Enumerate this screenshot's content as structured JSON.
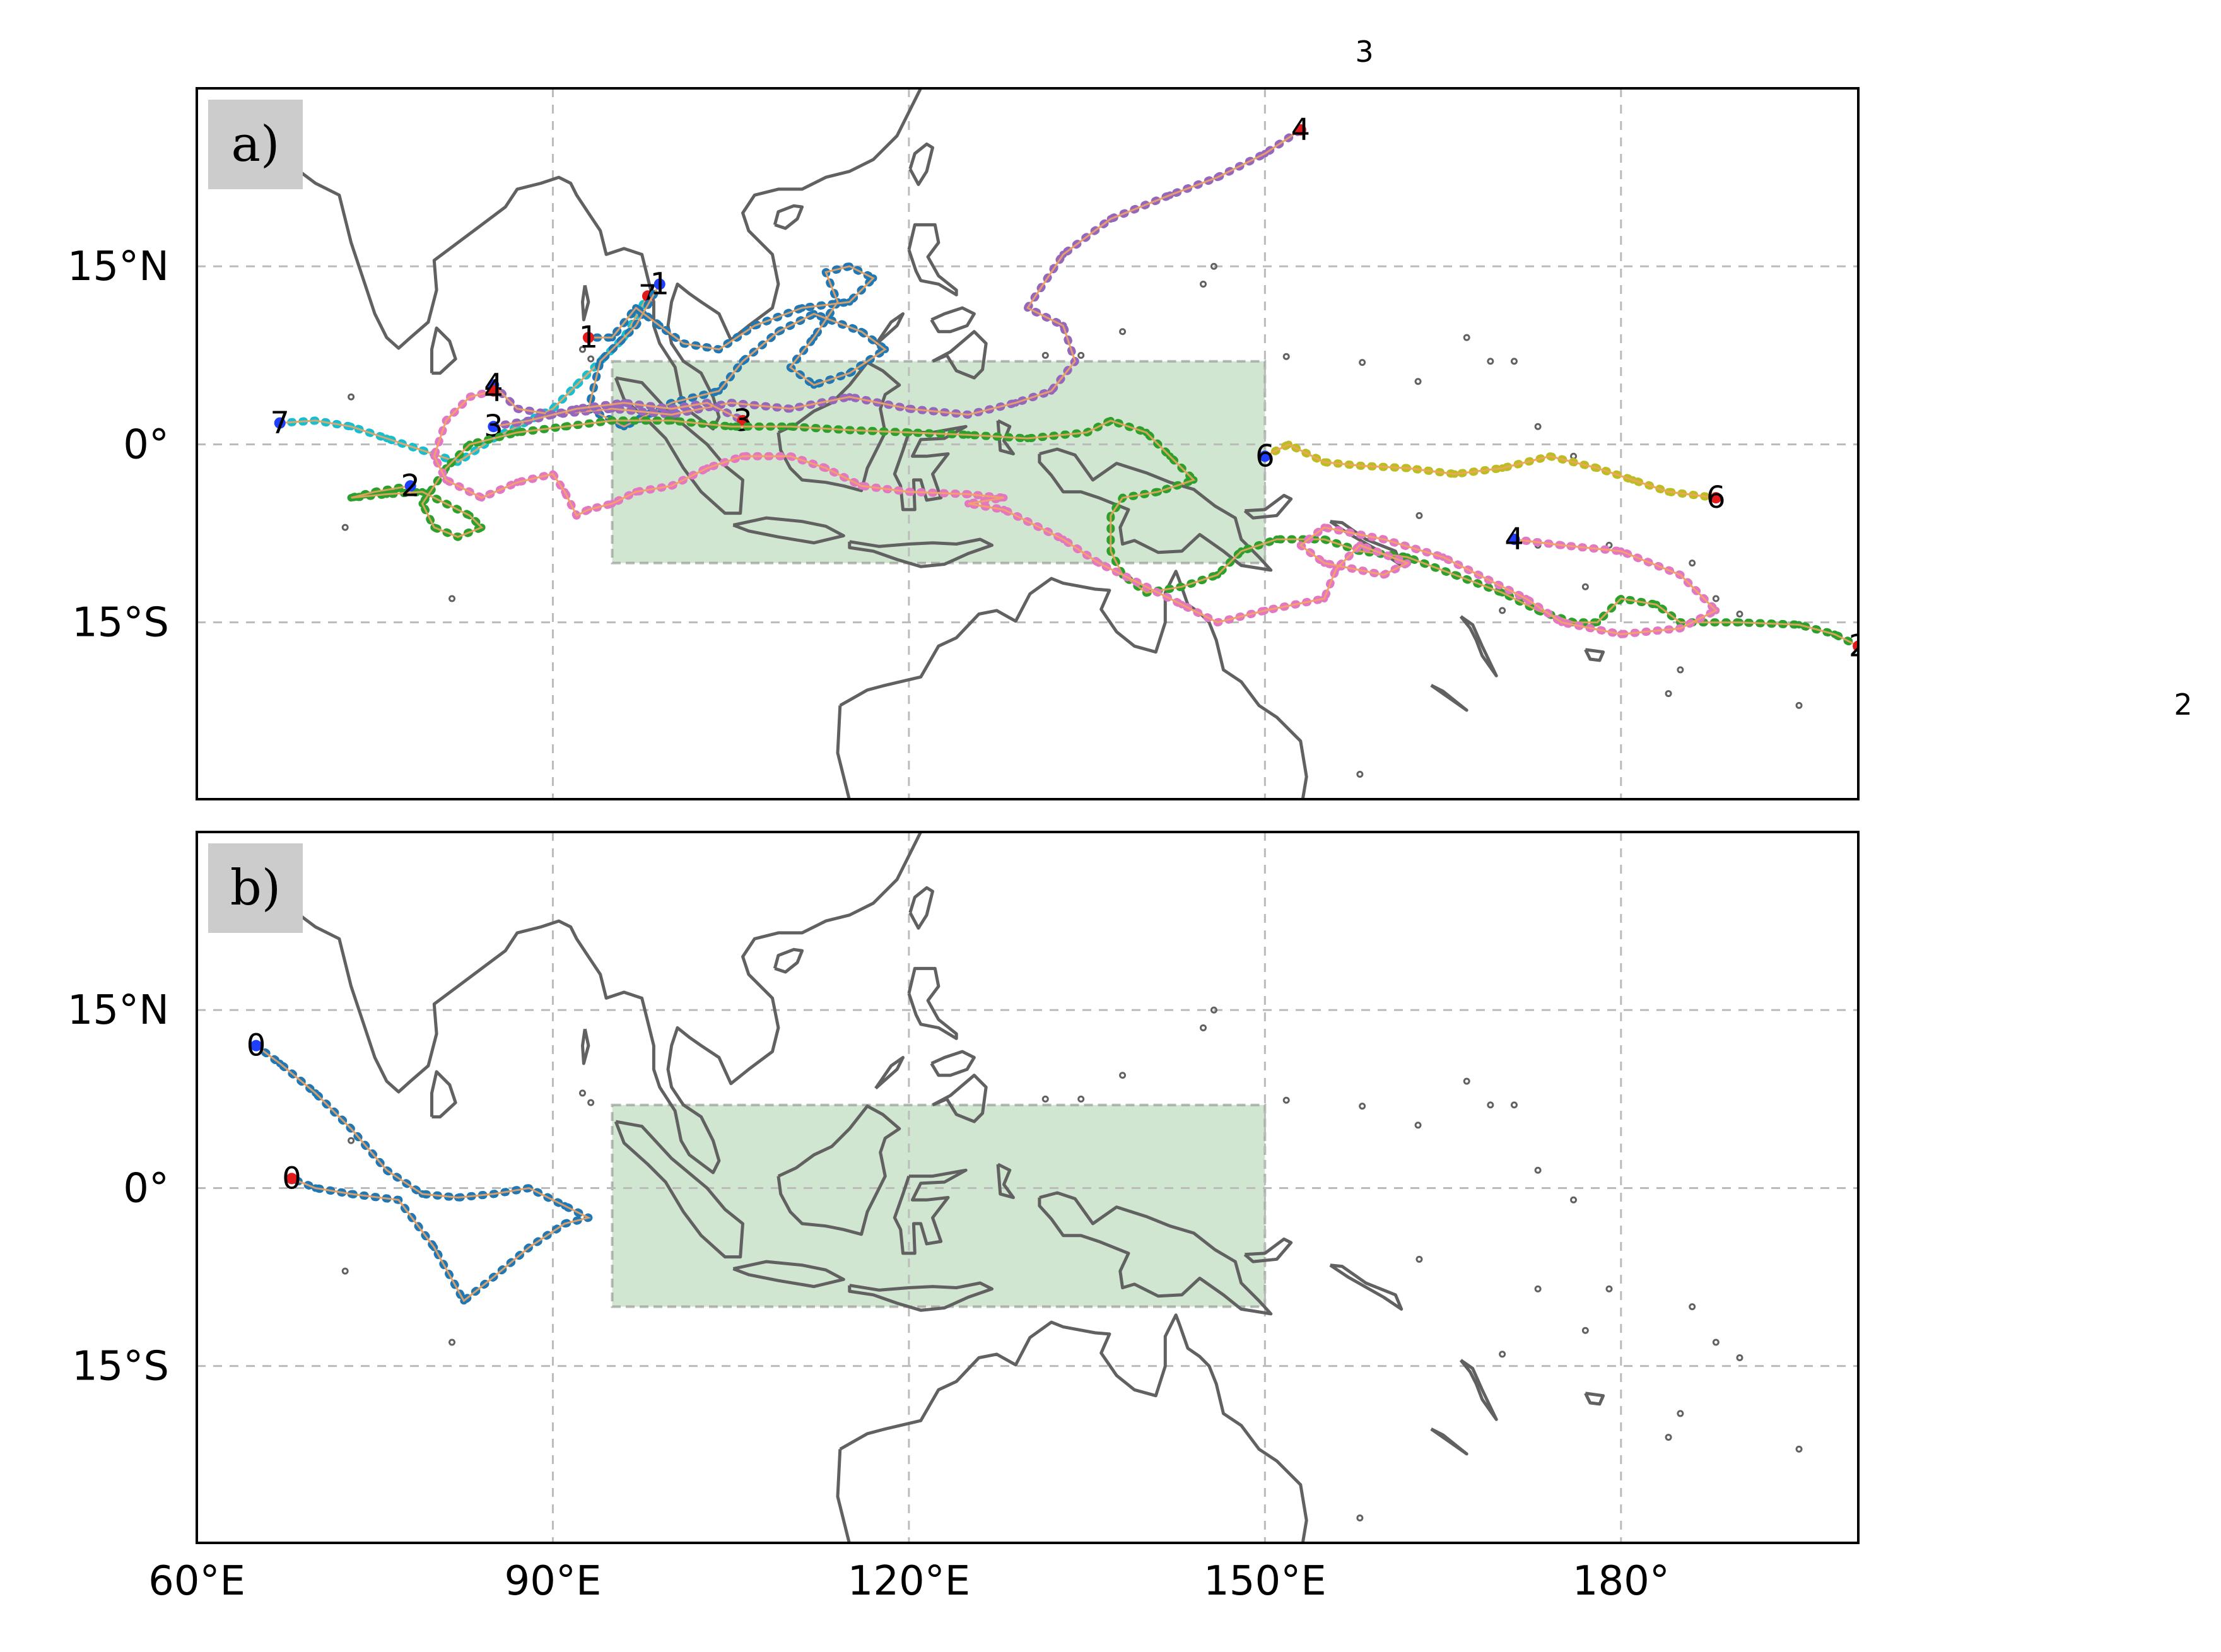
{
  "figure": {
    "panels": [
      {
        "id": "a",
        "label": "a)"
      },
      {
        "id": "b",
        "label": "b)"
      }
    ],
    "x_tick_labels": [
      "60°E",
      "90°E",
      "120°E",
      "150°E",
      "180°"
    ],
    "y_tick_labels": [
      "15°N",
      "0°",
      "15°S"
    ],
    "stray_labels": [
      "3",
      "2"
    ]
  },
  "map": {
    "projection": "PlateCarree",
    "lon_range": [
      60,
      200
    ],
    "lat_range": [
      -30,
      30
    ],
    "xticks": [
      60,
      90,
      120,
      150,
      180
    ],
    "yticks": [
      15,
      0,
      -15
    ],
    "gridlines": true,
    "coastline_color": "#616161",
    "highlight_region": {
      "lon": [
        95,
        150
      ],
      "lat": [
        -10,
        7
      ],
      "color": "#2e8b2e"
    }
  },
  "chart_data": [
    {
      "type": "map",
      "panel": "a)",
      "tracks": [
        {
          "start_label": "7",
          "end_label": "7",
          "color": "#17becf",
          "points": [
            [
              67,
              1.8
            ],
            [
              70,
              2
            ],
            [
              73,
              1.5
            ],
            [
              76,
              0.5
            ],
            [
              79,
              -0.5
            ],
            [
              82,
              -1.5
            ],
            [
              85,
              0.5
            ],
            [
              87,
              1.5
            ],
            [
              90,
              3
            ],
            [
              92,
              5
            ],
            [
              94,
              7
            ],
            [
              96,
              9
            ],
            [
              98,
              12.5
            ]
          ]
        },
        {
          "start_label": "1",
          "end_label": "1",
          "color": "#1f77b4",
          "points": [
            [
              99,
              13.5
            ],
            [
              97,
              10
            ],
            [
              94,
              7
            ],
            [
              93,
              3
            ],
            [
              96,
              1.5
            ],
            [
              100,
              3.5
            ],
            [
              104,
              4.5
            ],
            [
              106,
              7
            ],
            [
              109,
              9.5
            ],
            [
              112,
              11
            ],
            [
              116,
              9.5
            ],
            [
              118,
              8
            ],
            [
              115,
              6
            ],
            [
              112,
              5
            ],
            [
              110,
              6.5
            ],
            [
              112,
              9
            ],
            [
              114,
              12
            ],
            [
              113,
              14.5
            ],
            [
              115,
              15
            ],
            [
              117,
              14
            ],
            [
              115,
              12
            ],
            [
              111,
              11.5
            ],
            [
              107,
              10
            ],
            [
              104,
              8
            ],
            [
              101,
              8.5
            ],
            [
              99,
              10
            ],
            [
              97,
              11.5
            ],
            [
              95,
              9
            ],
            [
              93,
              9
            ]
          ]
        },
        {
          "start_label": "4",
          "end_label": "4",
          "color": "#9467bd",
          "points": [
            [
              85,
              5
            ],
            [
              87,
              3
            ],
            [
              90,
              2.5
            ],
            [
              95,
              3
            ],
            [
              100,
              2.5
            ],
            [
              105,
              3.5
            ],
            [
              110,
              3
            ],
            [
              115,
              4
            ],
            [
              120,
              3
            ],
            [
              125,
              2.5
            ],
            [
              129,
              3.5
            ],
            [
              132,
              4.5
            ],
            [
              134,
              7
            ],
            [
              133,
              10
            ],
            [
              130,
              11.5
            ],
            [
              133,
              16
            ],
            [
              137,
              19
            ],
            [
              142,
              21
            ],
            [
              146,
              22.5
            ],
            [
              150,
              24.5
            ],
            [
              153,
              26.5
            ]
          ]
        },
        {
          "start_label": "3",
          "end_label": "3",
          "color": "#9467bd",
          "points": [
            [
              85,
              1.5
            ],
            [
              88,
              2
            ],
            [
              92,
              3
            ],
            [
              96,
              3.5
            ],
            [
              100,
              3
            ],
            [
              103,
              3.5
            ],
            [
              106,
              2
            ]
          ]
        },
        {
          "start_label": "2",
          "end_label": "2",
          "color": "#2ca02c",
          "points": [
            [
              78,
              -3.5
            ],
            [
              75,
              -4
            ],
            [
              73,
              -4.5
            ],
            [
              76,
              -4.2
            ],
            [
              79,
              -4
            ],
            [
              81,
              -5
            ],
            [
              83,
              -6
            ],
            [
              84,
              -7
            ],
            [
              82,
              -7.8
            ],
            [
              80,
              -7
            ],
            [
              79,
              -5
            ],
            [
              81,
              -2
            ],
            [
              83,
              0
            ],
            [
              87,
              1
            ],
            [
              91,
              1.5
            ],
            [
              95,
              2
            ],
            [
              100,
              2
            ],
            [
              105,
              1.5
            ],
            [
              110,
              1.5
            ],
            [
              115,
              1.2
            ],
            [
              120,
              1
            ],
            [
              125,
              0.8
            ],
            [
              130,
              0.5
            ],
            [
              135,
              1
            ],
            [
              137,
              2
            ],
            [
              140,
              1
            ],
            [
              142,
              -1
            ],
            [
              144,
              -3
            ],
            [
              141,
              -4
            ],
            [
              138,
              -4.5
            ],
            [
              137,
              -6
            ],
            [
              137,
              -9
            ],
            [
              138,
              -11
            ],
            [
              140,
              -12.5
            ],
            [
              143,
              -12
            ],
            [
              146,
              -11
            ],
            [
              148,
              -9
            ],
            [
              151,
              -8
            ],
            [
              155,
              -8
            ],
            [
              158,
              -9
            ],
            [
              162,
              -9.5
            ],
            [
              166,
              -11
            ],
            [
              170,
              -12.5
            ],
            [
              173,
              -14
            ],
            [
              176,
              -15
            ],
            [
              178,
              -15
            ],
            [
              180,
              -13
            ],
            [
              183,
              -13.5
            ],
            [
              185,
              -15
            ],
            [
              190,
              -15
            ],
            [
              195,
              -15.2
            ],
            [
              198,
              -16
            ],
            [
              200,
              -17
            ]
          ]
        },
        {
          "start_label": "6",
          "end_label": "6",
          "color": "#bcbd22",
          "points": [
            [
              150,
              -1
            ],
            [
              152,
              0
            ],
            [
              155,
              -1.5
            ],
            [
              158,
              -1.8
            ],
            [
              162,
              -2
            ],
            [
              166,
              -2.5
            ],
            [
              170,
              -2
            ],
            [
              174,
              -1
            ],
            [
              178,
              -2
            ],
            [
              181,
              -3
            ],
            [
              184,
              -4
            ],
            [
              188,
              -4.5
            ]
          ]
        },
        {
          "start_label": "4",
          "end_label": "4",
          "color": "#e377c2",
          "points": [
            [
              171,
              -8
            ],
            [
              175,
              -8.5
            ],
            [
              180,
              -9
            ],
            [
              185,
              -11
            ],
            [
              188,
              -14
            ],
            [
              185,
              -15.5
            ],
            [
              180,
              -16
            ],
            [
              175,
              -15
            ],
            [
              172,
              -13
            ],
            [
              168,
              -11
            ],
            [
              165,
              -9.5
            ],
            [
              160,
              -8
            ],
            [
              155,
              -7
            ],
            [
              153,
              -8.5
            ],
            [
              155,
              -10
            ],
            [
              160,
              -11
            ],
            [
              162,
              -10
            ],
            [
              158,
              -8.5
            ],
            [
              156,
              -10.5
            ],
            [
              155,
              -13
            ],
            [
              150,
              -14
            ],
            [
              146,
              -15
            ],
            [
              143,
              -13.5
            ],
            [
              140,
              -12
            ],
            [
              136,
              -10
            ],
            [
              133,
              -8
            ],
            [
              130,
              -6.5
            ],
            [
              128,
              -5.5
            ],
            [
              125,
              -5
            ],
            [
              128,
              -4.5
            ],
            [
              125,
              -4.2
            ],
            [
              120,
              -4
            ],
            [
              116,
              -3.5
            ],
            [
              113,
              -2
            ],
            [
              110,
              -1
            ],
            [
              106,
              -1
            ],
            [
              103,
              -2
            ],
            [
              100,
              -3.5
            ],
            [
              97,
              -4
            ],
            [
              95,
              -5
            ],
            [
              93,
              -5.5
            ],
            [
              92,
              -6
            ],
            [
              91,
              -4
            ],
            [
              90,
              -2.5
            ],
            [
              87,
              -3.2
            ],
            [
              84,
              -4.5
            ],
            [
              81,
              -3
            ],
            [
              80,
              -1
            ],
            [
              81,
              2
            ],
            [
              83,
              4
            ],
            [
              85,
              4.5
            ]
          ]
        }
      ]
    },
    {
      "type": "map",
      "panel": "b)",
      "tracks": [
        {
          "start_label": "0",
          "end_label": "0",
          "color": "#1f77b4",
          "points": [
            [
              65,
              12
            ],
            [
              67,
              10.5
            ],
            [
              70,
              8
            ],
            [
              73,
              5
            ],
            [
              76,
              1.5
            ],
            [
              79,
              -0.5
            ],
            [
              82,
              -0.8
            ],
            [
              85,
              -0.5
            ],
            [
              88,
              0
            ],
            [
              91,
              -1.5
            ],
            [
              93,
              -2.5
            ],
            [
              91,
              -3
            ],
            [
              88,
              -5
            ],
            [
              85,
              -7.5
            ],
            [
              82.5,
              -9.5
            ],
            [
              80,
              -5
            ],
            [
              77,
              -1
            ],
            [
              73,
              -0.5
            ],
            [
              70,
              0
            ],
            [
              68,
              0.8
            ]
          ]
        }
      ]
    }
  ]
}
